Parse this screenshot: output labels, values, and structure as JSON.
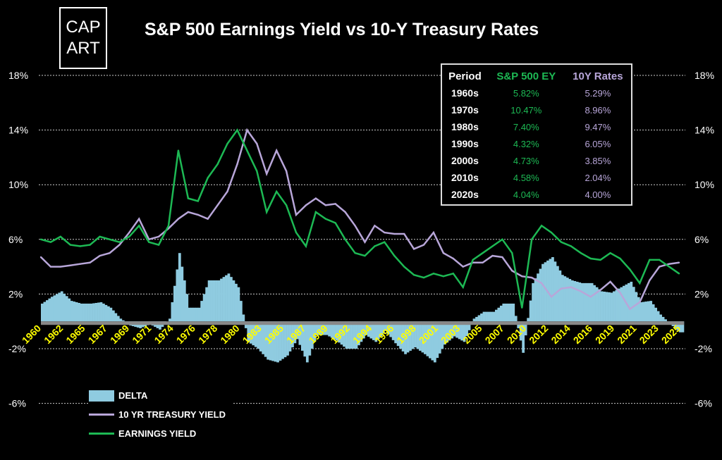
{
  "logo": {
    "line1": "CAP",
    "line2": "ART"
  },
  "colors": {
    "ey": "#1db954",
    "ty": "#b8a6d9",
    "delta": "#8fcbe0",
    "xlabel": "#ffff00"
  },
  "table": {
    "headers": [
      "Period",
      "S&P 500 EY",
      "10Y Rates"
    ],
    "rows": [
      {
        "period": "1960s",
        "ey": "5.82%",
        "ty": "5.29%"
      },
      {
        "period": "1970s",
        "ey": "10.47%",
        "ty": "8.96%"
      },
      {
        "period": "1980s",
        "ey": "7.40%",
        "ty": "9.47%"
      },
      {
        "period": "1990s",
        "ey": "4.32%",
        "ty": "6.05%"
      },
      {
        "period": "2000s",
        "ey": "4.73%",
        "ty": "3.85%"
      },
      {
        "period": "2010s",
        "ey": "4.58%",
        "ty": "2.04%"
      },
      {
        "period": "2020s",
        "ey": "4.04%",
        "ty": "4.00%"
      }
    ]
  },
  "chart_data": {
    "type": "line",
    "title": "S&P 500 Earnings Yield vs 10-Y Treasury Rates",
    "xlabel": "",
    "ylabel": "",
    "ylim": [
      -6,
      18
    ],
    "yticks": [
      -6,
      -2,
      2,
      6,
      10,
      14,
      18
    ],
    "ytick_labels": [
      "-6%",
      "-2%",
      "2%",
      "6%",
      "10%",
      "14%",
      "18%"
    ],
    "xlim": [
      1960,
      2025.5
    ],
    "xtick_labels": [
      "1960",
      "1962",
      "1965",
      "1967",
      "1969",
      "1971",
      "1974",
      "1976",
      "1978",
      "1980",
      "1983",
      "1985",
      "1987",
      "1989",
      "1992",
      "1994",
      "1996",
      "1998",
      "2001",
      "2003",
      "2005",
      "2007",
      "2010",
      "2012",
      "2014",
      "2016",
      "2019",
      "2021",
      "2023",
      "2025"
    ],
    "grid": true,
    "legend_position": "bottom-left",
    "x": [
      1960,
      1961,
      1962,
      1963,
      1964,
      1965,
      1966,
      1967,
      1968,
      1969,
      1970,
      1971,
      1972,
      1973,
      1974,
      1975,
      1976,
      1977,
      1978,
      1979,
      1980,
      1981,
      1982,
      1983,
      1984,
      1985,
      1986,
      1987,
      1988,
      1989,
      1990,
      1991,
      1992,
      1993,
      1994,
      1995,
      1996,
      1997,
      1998,
      1999,
      2000,
      2001,
      2002,
      2003,
      2004,
      2005,
      2006,
      2007,
      2008,
      2009,
      2010,
      2011,
      2012,
      2013,
      2014,
      2015,
      2016,
      2017,
      2018,
      2019,
      2020,
      2021,
      2022,
      2023,
      2024,
      2025
    ],
    "series": [
      {
        "name": "DELTA",
        "kind": "bar",
        "derived": "EARNINGS YIELD minus 10 YR TREASURY YIELD"
      },
      {
        "name": "10 YR TREASURY YIELD",
        "kind": "line",
        "values": [
          4.7,
          4.0,
          4.0,
          4.1,
          4.2,
          4.3,
          4.8,
          5.0,
          5.6,
          6.5,
          7.5,
          6.0,
          6.2,
          6.8,
          7.5,
          8.0,
          7.8,
          7.5,
          8.5,
          9.5,
          11.5,
          14.0,
          13.0,
          10.8,
          12.5,
          11.0,
          7.8,
          8.5,
          9.0,
          8.5,
          8.6,
          8.0,
          7.0,
          5.8,
          7.0,
          6.5,
          6.4,
          6.4,
          5.3,
          5.6,
          6.5,
          5.0,
          4.6,
          4.0,
          4.3,
          4.3,
          4.8,
          4.7,
          3.7,
          3.3,
          3.2,
          2.8,
          1.8,
          2.4,
          2.5,
          2.2,
          1.8,
          2.3,
          2.9,
          2.1,
          0.9,
          1.4,
          3.0,
          4.0,
          4.2,
          4.3
        ]
      },
      {
        "name": "EARNINGS YIELD",
        "kind": "line",
        "values": [
          6.0,
          5.8,
          6.2,
          5.6,
          5.5,
          5.6,
          6.2,
          6.0,
          5.8,
          6.2,
          7.0,
          5.8,
          5.6,
          7.0,
          12.5,
          9.0,
          8.8,
          10.5,
          11.5,
          13.0,
          14.0,
          12.5,
          11.0,
          8.0,
          9.5,
          8.5,
          6.5,
          5.5,
          8.0,
          7.5,
          7.2,
          6.0,
          5.0,
          4.8,
          5.5,
          5.8,
          4.8,
          4.0,
          3.4,
          3.2,
          3.5,
          3.3,
          3.5,
          2.5,
          4.5,
          5.0,
          5.5,
          6.0,
          5.0,
          1.0,
          6.0,
          7.0,
          6.5,
          5.8,
          5.5,
          5.0,
          4.6,
          4.5,
          5.0,
          4.6,
          3.8,
          2.8,
          4.5,
          4.5,
          4.0,
          3.5
        ]
      }
    ]
  }
}
